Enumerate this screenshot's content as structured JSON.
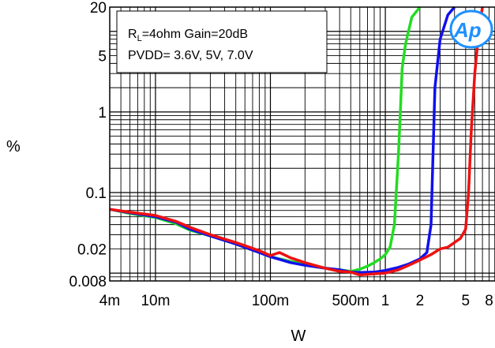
{
  "chart_data": {
    "type": "line",
    "xlabel": "W",
    "ylabel": "%",
    "x_scale": "log",
    "y_scale": "log",
    "xlim": [
      0.004,
      9
    ],
    "ylim": [
      0.008,
      20
    ],
    "x_ticks": [
      {
        "value": 0.004,
        "label": "4m"
      },
      {
        "value": 0.01,
        "label": "10m"
      },
      {
        "value": 0.1,
        "label": "100m"
      },
      {
        "value": 0.5,
        "label": "500m"
      },
      {
        "value": 1,
        "label": "1"
      },
      {
        "value": 2,
        "label": "2"
      },
      {
        "value": 5,
        "label": "5"
      },
      {
        "value": 8,
        "label": "8"
      }
    ],
    "y_ticks": [
      {
        "value": 20,
        "label": "20"
      },
      {
        "value": 5,
        "label": "5"
      },
      {
        "value": 1,
        "label": "1"
      },
      {
        "value": 0.1,
        "label": "0.1"
      },
      {
        "value": 0.02,
        "label": "0.02"
      },
      {
        "value": 0.008,
        "label": "0.008"
      }
    ],
    "grid": true,
    "annotation": {
      "line1_main": "R",
      "line1_sub": "L",
      "line1_rest": "=4ohm Gain=20dB",
      "line2": "PVDD= 3.6V, 5V, 7.0V"
    },
    "logo": "Ap",
    "series": [
      {
        "color": "#22dd22",
        "x": [
          0.004,
          0.006,
          0.01,
          0.015,
          0.02,
          0.03,
          0.05,
          0.08,
          0.1,
          0.15,
          0.2,
          0.3,
          0.4,
          0.5,
          0.6,
          0.7,
          0.8,
          0.9,
          1.0,
          1.1,
          1.2,
          1.3,
          1.35,
          1.4,
          1.5,
          1.7,
          2.0
        ],
        "y": [
          0.062,
          0.055,
          0.049,
          0.041,
          0.034,
          0.029,
          0.023,
          0.018,
          0.016,
          0.014,
          0.013,
          0.0115,
          0.011,
          0.0105,
          0.0112,
          0.0122,
          0.0135,
          0.015,
          0.017,
          0.021,
          0.04,
          0.3,
          1.0,
          3.5,
          7.0,
          15.0,
          20.0
        ]
      },
      {
        "color": "#1010ee",
        "x": [
          0.004,
          0.006,
          0.01,
          0.015,
          0.02,
          0.03,
          0.05,
          0.08,
          0.1,
          0.15,
          0.2,
          0.3,
          0.4,
          0.5,
          0.6,
          0.8,
          1.0,
          1.3,
          1.6,
          2.0,
          2.3,
          2.5,
          2.6,
          2.7,
          3.0,
          3.5,
          4.0
        ],
        "y": [
          0.062,
          0.056,
          0.05,
          0.043,
          0.035,
          0.029,
          0.023,
          0.018,
          0.016,
          0.0135,
          0.0125,
          0.0115,
          0.011,
          0.0103,
          0.0102,
          0.0103,
          0.0108,
          0.0118,
          0.013,
          0.015,
          0.018,
          0.04,
          0.3,
          2.0,
          8.0,
          16.0,
          20.0
        ]
      },
      {
        "color": "#ee1111",
        "x": [
          0.004,
          0.006,
          0.01,
          0.015,
          0.02,
          0.03,
          0.05,
          0.08,
          0.1,
          0.12,
          0.15,
          0.2,
          0.3,
          0.4,
          0.5,
          0.6,
          0.8,
          1.0,
          1.3,
          1.6,
          2.0,
          2.5,
          3.0,
          3.5,
          4.0,
          4.5,
          5.0,
          5.3,
          5.6,
          6.0,
          6.5,
          7.0
        ],
        "y": [
          0.062,
          0.057,
          0.052,
          0.044,
          0.037,
          0.03,
          0.024,
          0.019,
          0.0165,
          0.018,
          0.0155,
          0.0135,
          0.0115,
          0.0105,
          0.0103,
          0.0095,
          0.0098,
          0.01,
          0.011,
          0.0125,
          0.0145,
          0.017,
          0.02,
          0.021,
          0.024,
          0.027,
          0.035,
          0.1,
          0.6,
          3.0,
          10.0,
          20.0
        ]
      }
    ]
  }
}
